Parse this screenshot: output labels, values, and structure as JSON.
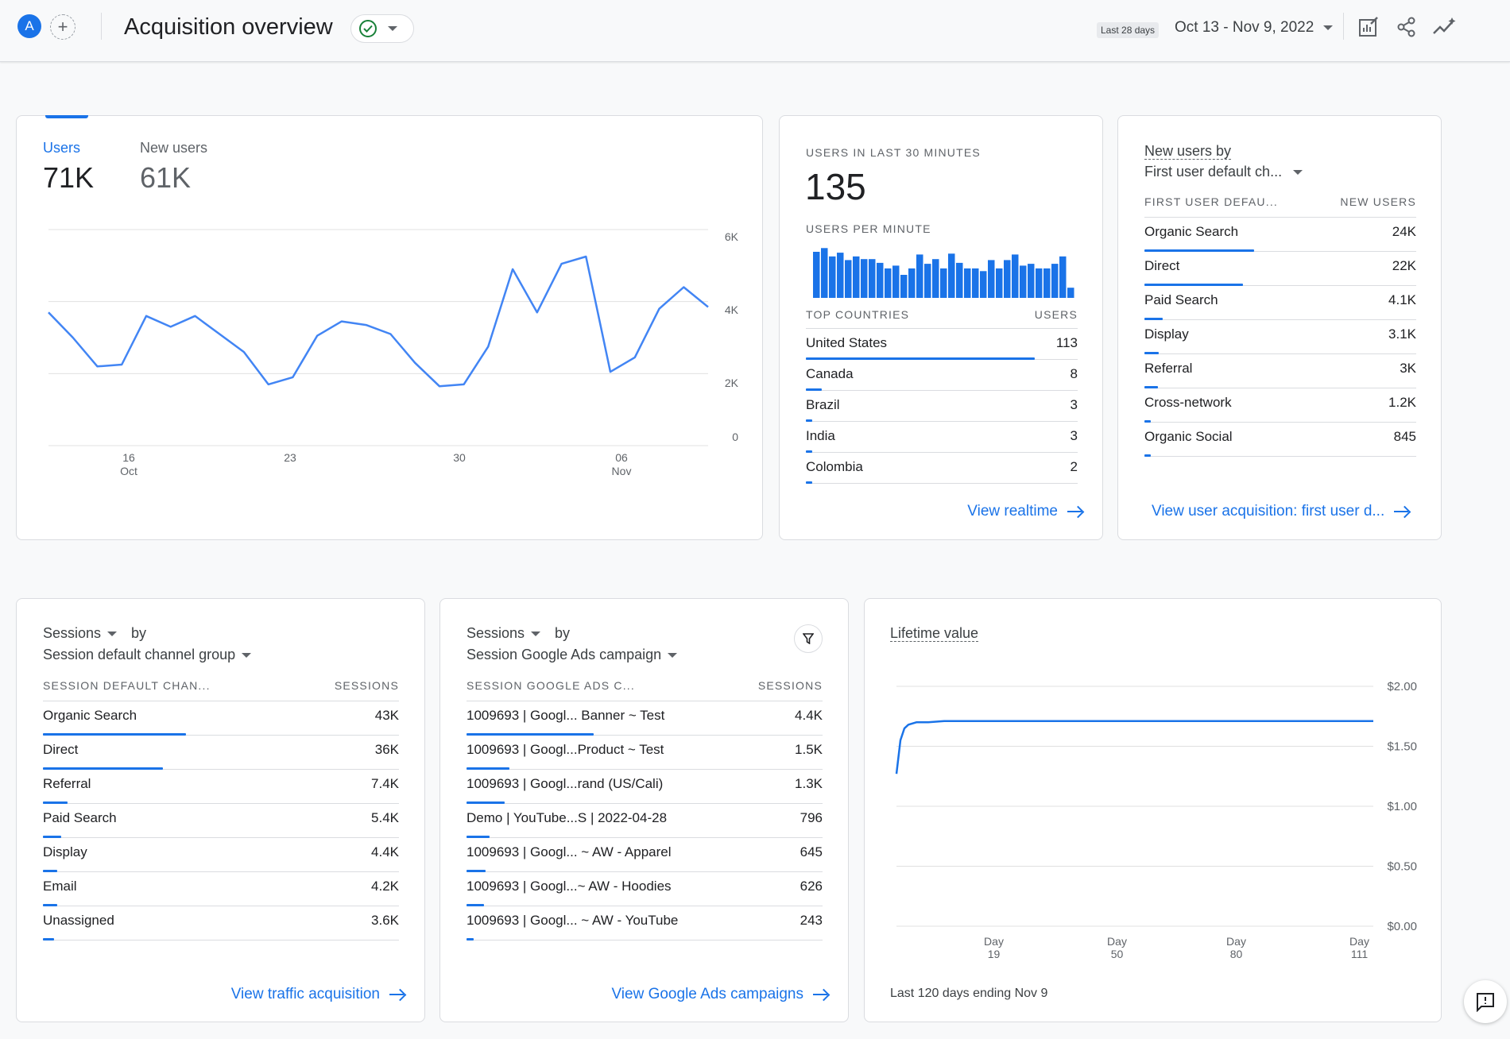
{
  "header": {
    "avatar_letter": "A",
    "add_comparison_symbol": "+",
    "title": "Acquisition overview",
    "date_chip": "Last 28 days",
    "date_range": "Oct 13 - Nov 9, 2022",
    "icons": [
      "customize-report-icon",
      "share-icon",
      "insights-icon"
    ]
  },
  "users_card": {
    "tabs": [
      {
        "label": "Users",
        "value": "71K",
        "active": true
      },
      {
        "label": "New users",
        "value": "61K",
        "active": false
      }
    ],
    "y_ticks": [
      "6K",
      "4K",
      "2K",
      "0"
    ],
    "x_ticks": [
      {
        "day": "16",
        "month": "Oct"
      },
      {
        "day": "23",
        "month": ""
      },
      {
        "day": "30",
        "month": ""
      },
      {
        "day": "06",
        "month": "Nov"
      }
    ]
  },
  "chart_data": [
    {
      "type": "line",
      "title": "",
      "series": [
        {
          "name": "Users",
          "values": [
            3700,
            3000,
            2200,
            2250,
            3600,
            3300,
            3600,
            3100,
            2600,
            1700,
            1900,
            3050,
            3450,
            3350,
            3100,
            2300,
            1650,
            1700,
            2750,
            4900,
            3700,
            5050,
            5250,
            2050,
            2450,
            3800,
            4400,
            3850
          ]
        }
      ],
      "x": [
        "Oct 13",
        "Oct 14",
        "Oct 15",
        "Oct 16",
        "Oct 17",
        "Oct 18",
        "Oct 19",
        "Oct 20",
        "Oct 21",
        "Oct 22",
        "Oct 23",
        "Oct 24",
        "Oct 25",
        "Oct 26",
        "Oct 27",
        "Oct 28",
        "Oct 29",
        "Oct 30",
        "Oct 31",
        "Nov 1",
        "Nov 2",
        "Nov 3",
        "Nov 4",
        "Nov 5",
        "Nov 6",
        "Nov 7",
        "Nov 8",
        "Nov 9"
      ],
      "ylim": [
        0,
        6000
      ],
      "grid": true,
      "color": "#4285f4"
    },
    {
      "type": "bar",
      "title": "USERS PER MINUTE",
      "values": [
        5,
        5.4,
        4.5,
        4.9,
        4.1,
        4.5,
        4.2,
        4.2,
        3.8,
        3.2,
        3.5,
        2.5,
        3.2,
        4.7,
        3.7,
        4.2,
        3.2,
        4.8,
        3.8,
        3.2,
        3.2,
        2.9,
        4.1,
        3.2,
        4.1,
        4.7,
        3.5,
        3.7,
        3.2,
        3.2,
        3.7,
        4.5,
        1.1
      ],
      "ylim": [
        0,
        5.6
      ],
      "color": "#1a73e8"
    },
    {
      "type": "line",
      "title": "Lifetime value",
      "x_ticks": [
        {
          "label": "Day",
          "num": "19"
        },
        {
          "label": "Day",
          "num": "50"
        },
        {
          "label": "Day",
          "num": "80"
        },
        {
          "label": "Day",
          "num": "111"
        }
      ],
      "series": [
        {
          "name": "Lifetime value",
          "x": [
            0,
            1,
            2,
            3,
            5,
            8,
            12,
            20,
            40,
            60,
            80,
            100,
            120
          ],
          "values": [
            1.27,
            1.55,
            1.65,
            1.68,
            1.7,
            1.7,
            1.71,
            1.71,
            1.71,
            1.71,
            1.71,
            1.71,
            1.71
          ]
        }
      ],
      "xlim": [
        0,
        120
      ],
      "ylim": [
        0,
        2.0
      ],
      "y_ticks": [
        "$2.00",
        "$1.50",
        "$1.00",
        "$0.50",
        "$0.00"
      ],
      "color": "#1a73e8"
    }
  ],
  "realtime_card": {
    "label": "USERS IN LAST 30 MINUTES",
    "value": "135",
    "per_minute_label": "USERS PER MINUTE",
    "col_country": "TOP COUNTRIES",
    "col_users": "USERS",
    "rows": [
      {
        "name": "United States",
        "value": "113",
        "fraction": 1.0
      },
      {
        "name": "Canada",
        "value": "8",
        "fraction": 0.071
      },
      {
        "name": "Brazil",
        "value": "3",
        "fraction": 0.027
      },
      {
        "name": "India",
        "value": "3",
        "fraction": 0.027
      },
      {
        "name": "Colombia",
        "value": "2",
        "fraction": 0.018
      }
    ],
    "link": "View realtime"
  },
  "new_users_card": {
    "title_line1": "New users by",
    "title_line2": "First user default ch...",
    "col_dim": "FIRST USER DEFAU...",
    "col_metric": "NEW USERS",
    "rows": [
      {
        "name": "Organic Search",
        "value": "24K",
        "fraction": 1.0
      },
      {
        "name": "Direct",
        "value": "22K",
        "fraction": 0.9
      },
      {
        "name": "Paid Search",
        "value": "4.1K",
        "fraction": 0.17
      },
      {
        "name": "Display",
        "value": "3.1K",
        "fraction": 0.13
      },
      {
        "name": "Referral",
        "value": "3K",
        "fraction": 0.12
      },
      {
        "name": "Cross-network",
        "value": "1.2K",
        "fraction": 0.05
      },
      {
        "name": "Organic Social",
        "value": "845",
        "fraction": 0.035
      }
    ],
    "link": "View user acquisition: first user d..."
  },
  "sessions_channel_card": {
    "metric": "Sessions",
    "by": "by",
    "dimension": "Session default channel group",
    "col_dim": "SESSION DEFAULT CHAN...",
    "col_metric": "SESSIONS",
    "rows": [
      {
        "name": "Organic Search",
        "value": "43K",
        "fraction": 1.0
      },
      {
        "name": "Direct",
        "value": "36K",
        "fraction": 0.84
      },
      {
        "name": "Referral",
        "value": "7.4K",
        "fraction": 0.17
      },
      {
        "name": "Paid Search",
        "value": "5.4K",
        "fraction": 0.13
      },
      {
        "name": "Display",
        "value": "4.4K",
        "fraction": 0.1
      },
      {
        "name": "Email",
        "value": "4.2K",
        "fraction": 0.1
      },
      {
        "name": "Unassigned",
        "value": "3.6K",
        "fraction": 0.08
      }
    ],
    "link": "View traffic acquisition"
  },
  "sessions_ads_card": {
    "metric": "Sessions",
    "by": "by",
    "dimension": "Session Google Ads campaign",
    "col_dim": "SESSION GOOGLE ADS C...",
    "col_metric": "SESSIONS",
    "rows": [
      {
        "name": "1009693 | Googl... Banner ~ Test",
        "value": "4.4K",
        "fraction": 1.0
      },
      {
        "name": "1009693 | Googl...Product ~ Test",
        "value": "1.5K",
        "fraction": 0.34
      },
      {
        "name": "1009693 | Googl...rand (US/Cali)",
        "value": "1.3K",
        "fraction": 0.3
      },
      {
        "name": "Demo | YouTube...S | 2022-04-28",
        "value": "796",
        "fraction": 0.18
      },
      {
        "name": "1009693 | Googl... ~ AW - Apparel",
        "value": "645",
        "fraction": 0.15
      },
      {
        "name": "1009693 | Googl...~ AW - Hoodies",
        "value": "626",
        "fraction": 0.14
      },
      {
        "name": "1009693 | Googl... ~ AW - YouTube",
        "value": "243",
        "fraction": 0.055
      }
    ],
    "link": "View Google Ads campaigns"
  },
  "ltv_card": {
    "title": "Lifetime value",
    "footer": "Last 120 days ending Nov 9"
  }
}
